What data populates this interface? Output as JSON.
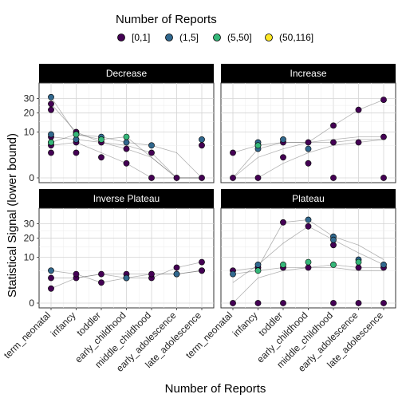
{
  "chart_data": {
    "type": "scatter",
    "legend": {
      "title": "Number of Reports",
      "placement": "top",
      "entries": [
        {
          "label": "[0,1]",
          "color": "#440154"
        },
        {
          "label": "(1,5]",
          "color": "#31688e"
        },
        {
          "label": "(5,50]",
          "color": "#35b779"
        },
        {
          "label": "(50,116]",
          "color": "#fde725"
        }
      ]
    },
    "xlabel": "Number of Reports",
    "ylabel": "Statistical Signal (lower bound)",
    "categories": [
      "term_neonatal",
      "infancy",
      "toddler",
      "early_childhood",
      "middle_childhood",
      "early_adolescence",
      "late_adolescence"
    ],
    "y_scale": "sqrt",
    "yticks": [
      0,
      10,
      20,
      30
    ],
    "ylim": [
      0,
      40
    ],
    "grid": true,
    "panels": [
      {
        "title": "Decrease",
        "series": [
          {
            "name": "[0,1]",
            "x": [
              "term_neonatal",
              "term_neonatal",
              "term_neonatal",
              "term_neonatal",
              "term_neonatal",
              "infancy",
              "infancy",
              "infancy",
              "toddler",
              "toddler",
              "early_childhood",
              "early_childhood",
              "middle_childhood",
              "middle_childhood",
              "early_adolescence",
              "late_adolescence",
              "late_adolescence"
            ],
            "y": [
              26,
              22,
              8,
              5,
              3,
              10,
              6,
              3,
              6,
              2,
              4,
              1,
              3,
              0,
              0,
              5,
              0
            ]
          },
          {
            "name": "(1,5]",
            "x": [
              "term_neonatal",
              "term_neonatal",
              "term_neonatal",
              "infancy",
              "infancy",
              "toddler",
              "early_childhood",
              "middle_childhood",
              "late_adolescence"
            ],
            "y": [
              31,
              9,
              6,
              9,
              7,
              8,
              6,
              5,
              7
            ]
          },
          {
            "name": "(5,50]",
            "x": [
              "term_neonatal",
              "infancy",
              "toddler",
              "early_childhood"
            ],
            "y": [
              6,
              9,
              7,
              8
            ]
          }
        ],
        "lines": [
          {
            "x": [
              "term_neonatal",
              "infancy",
              "toddler",
              "early_childhood",
              "middle_childhood",
              "early_adolescence",
              "late_adolescence"
            ],
            "y": [
              31,
              9,
              8,
              6,
              5,
              3,
              0
            ]
          },
          {
            "x": [
              "term_neonatal",
              "infancy",
              "toddler",
              "early_childhood",
              "middle_childhood",
              "early_adolescence",
              "late_adolescence"
            ],
            "y": [
              26,
              10,
              6,
              5,
              3,
              0,
              0
            ]
          },
          {
            "x": [
              "term_neonatal",
              "infancy",
              "toddler",
              "early_childhood",
              "middle_childhood",
              "early_adolescence",
              "late_adolescence"
            ],
            "y": [
              8,
              7,
              6,
              4,
              2,
              0,
              0
            ]
          },
          {
            "x": [
              "term_neonatal",
              "infancy",
              "toddler",
              "early_childhood",
              "middle_childhood",
              "early_adolescence",
              "late_adolescence"
            ],
            "y": [
              6,
              9,
              7,
              8,
              2,
              0,
              0
            ]
          },
          {
            "x": [
              "term_neonatal",
              "infancy",
              "toddler",
              "early_childhood",
              "middle_childhood",
              "early_adolescence",
              "late_adolescence"
            ],
            "y": [
              5,
              6,
              3,
              1,
              0,
              0,
              0
            ]
          }
        ]
      },
      {
        "title": "Increase",
        "series": [
          {
            "name": "[0,1]",
            "x": [
              "term_neonatal",
              "term_neonatal",
              "infancy",
              "infancy",
              "toddler",
              "toddler",
              "early_childhood",
              "early_childhood",
              "middle_childhood",
              "middle_childhood",
              "middle_childhood",
              "early_adolescence",
              "early_adolescence",
              "late_adolescence",
              "late_adolescence",
              "late_adolescence"
            ],
            "y": [
              0,
              3,
              0,
              5,
              2,
              6,
              1,
              6,
              13,
              6,
              0,
              22,
              6,
              29,
              8,
              0
            ]
          },
          {
            "name": "(1,5]",
            "x": [
              "infancy",
              "infancy",
              "toddler",
              "early_childhood"
            ],
            "y": [
              6,
              4,
              7,
              4
            ]
          },
          {
            "name": "(5,50]",
            "x": [
              "infancy"
            ],
            "y": [
              5
            ]
          }
        ],
        "lines": [
          {
            "x": [
              "term_neonatal",
              "infancy",
              "toddler",
              "early_childhood",
              "middle_childhood",
              "early_adolescence",
              "late_adolescence"
            ],
            "y": [
              0,
              2,
              4,
              6,
              13,
              22,
              29
            ]
          },
          {
            "x": [
              "term_neonatal",
              "infancy",
              "toddler",
              "early_childhood",
              "middle_childhood",
              "early_adolescence",
              "late_adolescence"
            ],
            "y": [
              0,
              4,
              6,
              6,
              7,
              8,
              8
            ]
          },
          {
            "x": [
              "term_neonatal",
              "infancy",
              "toddler",
              "early_childhood",
              "middle_childhood",
              "early_adolescence",
              "late_adolescence"
            ],
            "y": [
              0,
              0,
              1,
              3,
              5,
              6,
              7
            ]
          },
          {
            "x": [
              "term_neonatal",
              "infancy",
              "toddler",
              "early_childhood",
              "middle_childhood",
              "early_adolescence",
              "late_adolescence"
            ],
            "y": [
              3,
              5,
              6,
              6,
              6,
              7,
              7
            ]
          }
        ]
      },
      {
        "title": "Inverse Plateau",
        "series": [
          {
            "name": "[0,1]",
            "x": [
              "term_neonatal",
              "term_neonatal",
              "infancy",
              "infancy",
              "toddler",
              "toddler",
              "early_childhood",
              "early_childhood",
              "middle_childhood",
              "middle_childhood",
              "early_adolescence",
              "early_adolescence",
              "late_adolescence",
              "late_adolescence",
              "late_adolescence"
            ],
            "y": [
              1,
              3,
              3,
              4,
              4,
              2,
              4,
              3,
              3,
              4,
              4,
              6,
              5,
              8,
              5
            ]
          },
          {
            "name": "(1,5]",
            "x": [
              "term_neonatal",
              "early_childhood",
              "early_adolescence"
            ],
            "y": [
              5,
              3,
              4
            ]
          }
        ],
        "lines": [
          {
            "x": [
              "term_neonatal",
              "infancy",
              "toddler",
              "early_childhood",
              "middle_childhood",
              "early_adolescence",
              "late_adolescence"
            ],
            "y": [
              1,
              3,
              4,
              3,
              4,
              4,
              5
            ]
          },
          {
            "x": [
              "term_neonatal",
              "infancy",
              "toddler",
              "early_childhood",
              "middle_childhood",
              "early_adolescence",
              "late_adolescence"
            ],
            "y": [
              5,
              4,
              2,
              3,
              3,
              6,
              8
            ]
          },
          {
            "x": [
              "term_neonatal",
              "infancy",
              "toddler",
              "early_childhood",
              "middle_childhood",
              "early_adolescence",
              "late_adolescence"
            ],
            "y": [
              3,
              3,
              4,
              4,
              4,
              4,
              5
            ]
          }
        ]
      },
      {
        "title": "Plateau",
        "series": [
          {
            "name": "[0,1]",
            "x": [
              "term_neonatal",
              "term_neonatal",
              "infancy",
              "infancy",
              "toddler",
              "toddler",
              "toddler",
              "early_childhood",
              "early_childhood",
              "middle_childhood",
              "middle_childhood",
              "early_adolescence",
              "early_adolescence",
              "late_adolescence",
              "late_adolescence"
            ],
            "y": [
              5,
              0,
              6,
              0,
              31,
              6,
              0,
              28,
              6,
              16,
              0,
              6,
              0,
              6,
              0
            ]
          },
          {
            "name": "(1,5]",
            "x": [
              "term_neonatal",
              "infancy",
              "early_childhood",
              "middle_childhood",
              "middle_childhood",
              "early_adolescence",
              "late_adolescence"
            ],
            "y": [
              4,
              7,
              33,
              21,
              19,
              9,
              7
            ]
          },
          {
            "name": "(5,50]",
            "x": [
              "infancy",
              "toddler",
              "early_childhood",
              "middle_childhood",
              "early_adolescence"
            ],
            "y": [
              5,
              7,
              8,
              7,
              8
            ]
          }
        ],
        "lines": [
          {
            "x": [
              "term_neonatal",
              "infancy",
              "toddler",
              "early_childhood",
              "middle_childhood",
              "early_adolescence",
              "late_adolescence"
            ],
            "y": [
              5,
              6,
              31,
              33,
              21,
              16,
              9
            ]
          },
          {
            "x": [
              "term_neonatal",
              "infancy",
              "toddler",
              "early_childhood",
              "middle_childhood",
              "early_adolescence",
              "late_adolescence"
            ],
            "y": [
              2,
              7,
              17,
              28,
              19,
              12,
              7
            ]
          },
          {
            "x": [
              "term_neonatal",
              "infancy",
              "toddler",
              "early_childhood",
              "middle_childhood",
              "early_adolescence",
              "late_adolescence"
            ],
            "y": [
              4,
              5,
              6,
              6,
              7,
              6,
              6
            ]
          },
          {
            "x": [
              "term_neonatal",
              "infancy",
              "toddler",
              "early_childhood",
              "middle_childhood",
              "early_adolescence",
              "late_adolescence"
            ],
            "y": [
              0,
              3,
              5,
              6,
              6,
              5,
              5
            ]
          }
        ]
      }
    ]
  }
}
